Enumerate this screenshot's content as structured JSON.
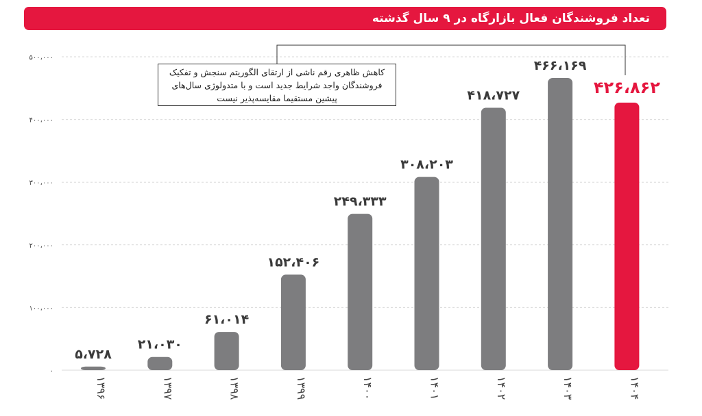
{
  "title": "تعداد فروشندگان فعال بازارگاه در ۹ سال گذشته",
  "colors": {
    "bar": "#7d7d7f",
    "highlight": "#e5173f",
    "grid": "#d9d9d9"
  },
  "note": "کاهش ظاهری رقم ناشی از ارتقای الگوریتم سنجش و تفکیک فروشندگان واجد شرایط جدید است و با متدولوژی سال‌های پیشین مستقیما مقایسه‌پذیر نیست",
  "chart_data": {
    "type": "bar",
    "categories": [
      "۱۳۹۶",
      "۱۳۹۷",
      "۱۳۹۸",
      "۱۳۹۹",
      "۱۴۰۰",
      "۱۴۰۱",
      "۱۴۰۲",
      "۱۴۰۳",
      "۱۴۰۴"
    ],
    "values": [
      5728,
      21030,
      61014,
      152406,
      249333,
      308203,
      418727,
      466169,
      426862
    ],
    "value_labels": [
      "۵،۷۲۸",
      "۲۱،۰۳۰",
      "۶۱،۰۱۴",
      "۱۵۲،۴۰۶",
      "۲۴۹،۳۳۳",
      "۳۰۸،۲۰۳",
      "۴۱۸،۷۲۷",
      "۴۶۶،۱۶۹",
      "۴۲۶،۸۶۲"
    ],
    "highlight_index": 8,
    "ylim": [
      0,
      500000
    ],
    "yticks": [
      0,
      100000,
      200000,
      300000,
      400000,
      500000
    ],
    "ytick_labels": [
      "۰",
      "۱۰۰،۰۰۰",
      "۲۰۰،۰۰۰",
      "۳۰۰،۰۰۰",
      "۴۰۰،۰۰۰",
      "۵۰۰،۰۰۰"
    ],
    "grid": true,
    "xlabel": "",
    "ylabel": ""
  }
}
